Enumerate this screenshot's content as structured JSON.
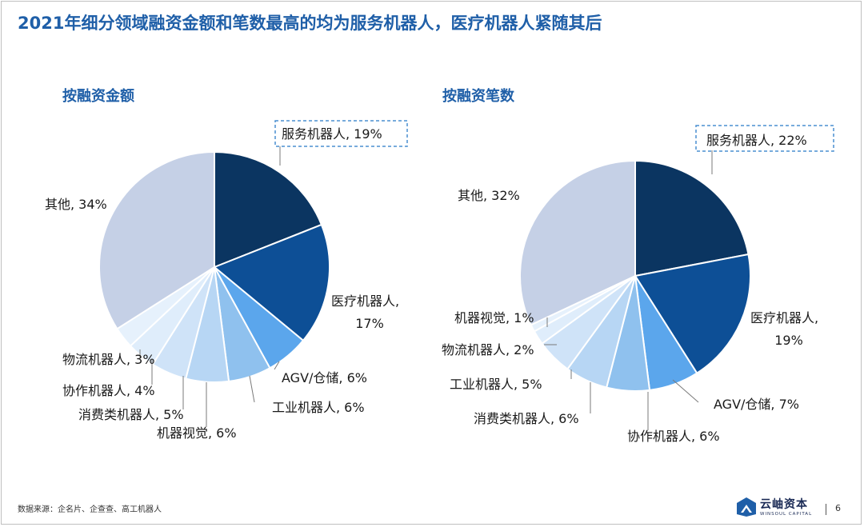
{
  "title": "2021年细分领域融资金额和笔数最高的均为服务机器人，医疗机器人紧随其后",
  "source": "数据来源：企名片、企查查、高工机器人",
  "logo": {
    "name": "云岫资本",
    "sub": "WINSOUL CAPITAL"
  },
  "page_number": "6",
  "colors": {
    "title": "#1f5fa8",
    "slices": [
      "#0b3561",
      "#0d4f96",
      "#5ba6ec",
      "#8fc1ee",
      "#b7d6f4",
      "#cfe3f8",
      "#dfedfb",
      "#e6f1fc",
      "#c5d0e6"
    ],
    "highlight_box": "#4a8fd1"
  },
  "chart_data": [
    {
      "type": "pie",
      "title": "按融资金额",
      "categories": [
        "服务机器人",
        "医疗机器人",
        "AGV/仓储",
        "工业机器人",
        "机器视觉",
        "消费类机器人",
        "协作机器人",
        "物流机器人",
        "其他"
      ],
      "values": [
        19,
        17,
        6,
        6,
        6,
        5,
        4,
        3,
        34
      ],
      "unit": "%",
      "labels": [
        "服务机器人, 19%",
        "医疗机器人,",
        "AGV/仓储, 6%",
        "工业机器人, 6%",
        "机器视觉, 6%",
        "消费类机器人, 5%",
        "协作机器人, 4%",
        "物流机器人, 3%",
        "其他, 34%"
      ],
      "label_line2": [
        "",
        "17%",
        "",
        "",
        "",
        "",
        "",
        "",
        ""
      ],
      "highlighted": "服务机器人"
    },
    {
      "type": "pie",
      "title": "按融资笔数",
      "categories": [
        "服务机器人",
        "医疗机器人",
        "AGV/仓储",
        "协作机器人",
        "消费类机器人",
        "工业机器人",
        "物流机器人",
        "机器视觉",
        "其他"
      ],
      "values": [
        22,
        19,
        7,
        6,
        6,
        5,
        2,
        1,
        32
      ],
      "unit": "%",
      "labels": [
        "服务机器人, 22%",
        "医疗机器人,",
        "AGV/仓储, 7%",
        "协作机器人, 6%",
        "消费类机器人, 6%",
        "工业机器人, 5%",
        "物流机器人, 2%",
        "机器视觉, 1%",
        "其他, 32%"
      ],
      "label_line2": [
        "",
        "19%",
        "",
        "",
        "",
        "",
        "",
        "",
        ""
      ],
      "highlighted": "服务机器人"
    }
  ]
}
